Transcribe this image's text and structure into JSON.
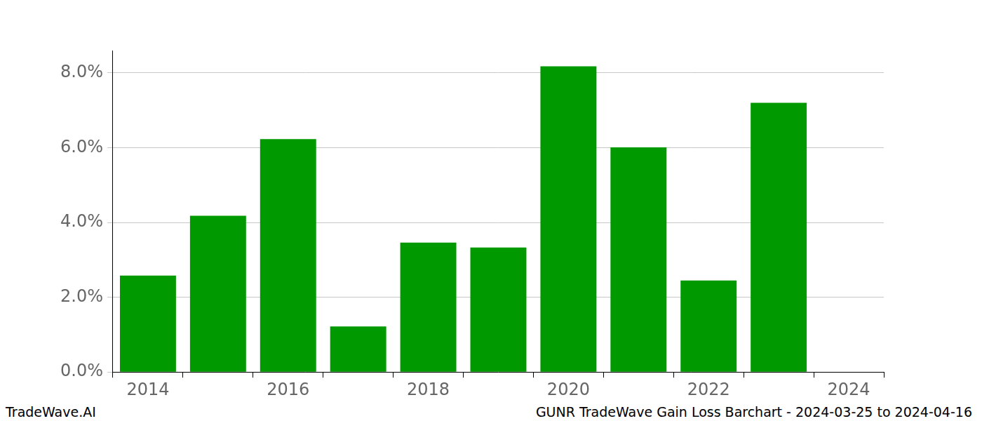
{
  "chart_data": {
    "type": "bar",
    "title": "GUNR TradeWave Gain Loss Barchart - 2024-03-25 to 2024-04-16",
    "annotations": [
      "TradeWave.AI"
    ],
    "categories": [
      "2014",
      null,
      "2016",
      null,
      "2018",
      null,
      "2020",
      null,
      "2022",
      null,
      "2024"
    ],
    "values": [
      2.58,
      4.18,
      6.23,
      1.22,
      3.46,
      3.33,
      8.18,
      6.01,
      2.45,
      7.2,
      null
    ],
    "color": "#009900",
    "ylim": [
      0,
      8.6
    ],
    "yticks": [
      {
        "value": 0,
        "label": "0.0%"
      },
      {
        "value": 2,
        "label": "2.0%"
      },
      {
        "value": 4,
        "label": "4.0%"
      },
      {
        "value": 6,
        "label": "6.0%"
      },
      {
        "value": 8,
        "label": "8.0%"
      }
    ],
    "grid": true
  }
}
